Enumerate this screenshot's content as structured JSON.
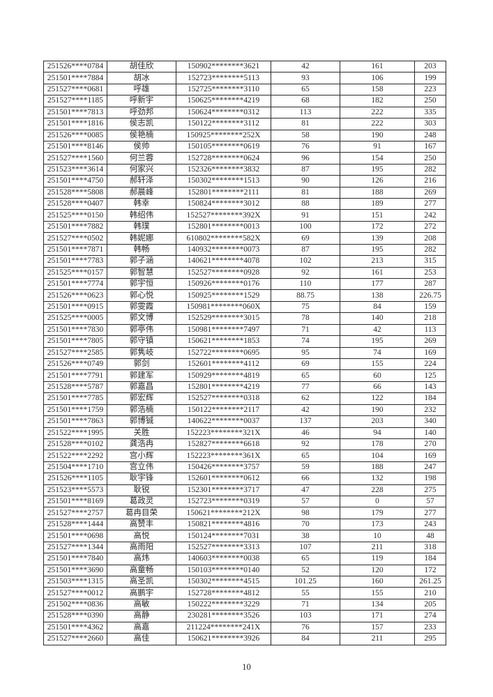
{
  "page": {
    "number": "10"
  },
  "colors": {
    "background": "#ffffff",
    "border": "#2a2a2a",
    "text": "#2a2a2a"
  },
  "table": {
    "column_roles": [
      "registration-no",
      "name",
      "id-number",
      "score-1",
      "score-2",
      "total"
    ],
    "rows": [
      [
        "251526****0784",
        "胡佳欣",
        "150902********3621",
        "42",
        "161",
        "203"
      ],
      [
        "251501****7884",
        "胡冰",
        "152723********5113",
        "93",
        "106",
        "199"
      ],
      [
        "251527****0681",
        "呼雄",
        "152725********3110",
        "65",
        "158",
        "223"
      ],
      [
        "251527****1185",
        "呼新宇",
        "150625********4219",
        "68",
        "182",
        "250"
      ],
      [
        "251501****7813",
        "呼劲邦",
        "150624********0312",
        "113",
        "222",
        "335"
      ],
      [
        "251501****1816",
        "侯志凯",
        "150122********3112",
        "81",
        "222",
        "303"
      ],
      [
        "251526****0085",
        "侯艳楠",
        "150925********252X",
        "58",
        "190",
        "248"
      ],
      [
        "251501****8146",
        "侯帅",
        "150105********0619",
        "76",
        "91",
        "167"
      ],
      [
        "251527****1560",
        "何兰蓉",
        "152728********0624",
        "96",
        "154",
        "250"
      ],
      [
        "251523****3614",
        "何家兴",
        "152326********3832",
        "87",
        "195",
        "282"
      ],
      [
        "251501****4750",
        "郝轩泽",
        "150302********1513",
        "90",
        "126",
        "216"
      ],
      [
        "251528****5808",
        "郝晨峰",
        "152801********2111",
        "81",
        "188",
        "269"
      ],
      [
        "251528****0407",
        "韩幸",
        "150824********3012",
        "88",
        "189",
        "277"
      ],
      [
        "251525****0150",
        "韩绍伟",
        "152527********392X",
        "91",
        "151",
        "242"
      ],
      [
        "251501****7882",
        "韩璞",
        "152801********0013",
        "100",
        "172",
        "272"
      ],
      [
        "251527****0502",
        "韩妮娜",
        "610802********582X",
        "69",
        "139",
        "208"
      ],
      [
        "251501****7871",
        "韩畅",
        "140932********0073",
        "87",
        "195",
        "282"
      ],
      [
        "251501****7783",
        "郭子涵",
        "140621********4078",
        "102",
        "213",
        "315"
      ],
      [
        "251525****0157",
        "郭智慧",
        "152527********0928",
        "92",
        "161",
        "253"
      ],
      [
        "251501****7774",
        "郭宇恒",
        "150926********0176",
        "110",
        "177",
        "287"
      ],
      [
        "251526****0623",
        "郭心悦",
        "150925********1529",
        "88.75",
        "138",
        "226.75"
      ],
      [
        "251501****0915",
        "郭雯霞",
        "150981********060X",
        "75",
        "84",
        "159"
      ],
      [
        "251525****0005",
        "郭文博",
        "152529********3015",
        "78",
        "140",
        "218"
      ],
      [
        "251501****7830",
        "郭亭伟",
        "150981********7497",
        "71",
        "42",
        "113"
      ],
      [
        "251501****7805",
        "郭守镇",
        "150621********1853",
        "74",
        "195",
        "269"
      ],
      [
        "251527****2585",
        "郭隽岐",
        "152722********0695",
        "95",
        "74",
        "169"
      ],
      [
        "251526****0749",
        "郭剑",
        "152601********4112",
        "69",
        "155",
        "224"
      ],
      [
        "251501****7791",
        "郭建军",
        "150929********4819",
        "65",
        "60",
        "125"
      ],
      [
        "251528****5787",
        "郭嘉昌",
        "152801********4219",
        "77",
        "66",
        "143"
      ],
      [
        "251501****7785",
        "郭宏辉",
        "152527********0318",
        "62",
        "122",
        "184"
      ],
      [
        "251501****1759",
        "郭浩楠",
        "150122********2117",
        "42",
        "190",
        "232"
      ],
      [
        "251501****7863",
        "郭博铖",
        "140622********0037",
        "137",
        "203",
        "340"
      ],
      [
        "251522****1995",
        "关胜",
        "152223********321X",
        "46",
        "94",
        "140"
      ],
      [
        "251528****0102",
        "龚浩冉",
        "152827********6618",
        "92",
        "178",
        "270"
      ],
      [
        "251522****2292",
        "宫小辉",
        "152223********361X",
        "65",
        "104",
        "169"
      ],
      [
        "251504****1710",
        "宫立伟",
        "150426********3757",
        "59",
        "188",
        "247"
      ],
      [
        "251526****1105",
        "耿宇锋",
        "152601********0612",
        "66",
        "132",
        "198"
      ],
      [
        "251523****5573",
        "耿锐",
        "152301********3717",
        "47",
        "228",
        "275"
      ],
      [
        "251501****8169",
        "葛政灵",
        "152723********0319",
        "57",
        "0",
        "57"
      ],
      [
        "251527****2757",
        "葛冉目荣",
        "150621********212X",
        "98",
        "179",
        "277"
      ],
      [
        "251528****1444",
        "高赞丰",
        "150821********4816",
        "70",
        "173",
        "243"
      ],
      [
        "251501****0698",
        "高悦",
        "150124********7031",
        "38",
        "10",
        "48"
      ],
      [
        "251527****1344",
        "高雨阳",
        "152527********3313",
        "107",
        "211",
        "318"
      ],
      [
        "251501****7840",
        "高炜",
        "140603********0038",
        "65",
        "119",
        "184"
      ],
      [
        "251501****3690",
        "高童畅",
        "150103********0140",
        "52",
        "120",
        "172"
      ],
      [
        "251503****1315",
        "高圣凯",
        "150302********4515",
        "101.25",
        "160",
        "261.25"
      ],
      [
        "251527****0012",
        "高鹏宇",
        "152728********4812",
        "55",
        "155",
        "210"
      ],
      [
        "251502****0836",
        "高敏",
        "150222********3229",
        "71",
        "134",
        "205"
      ],
      [
        "251528****0390",
        "高静",
        "230281********3526",
        "103",
        "171",
        "274"
      ],
      [
        "251501****4362",
        "高嘉",
        "211224********241X",
        "76",
        "157",
        "233"
      ],
      [
        "251527****2660",
        "高佳",
        "150621********3926",
        "84",
        "211",
        "295"
      ]
    ]
  }
}
